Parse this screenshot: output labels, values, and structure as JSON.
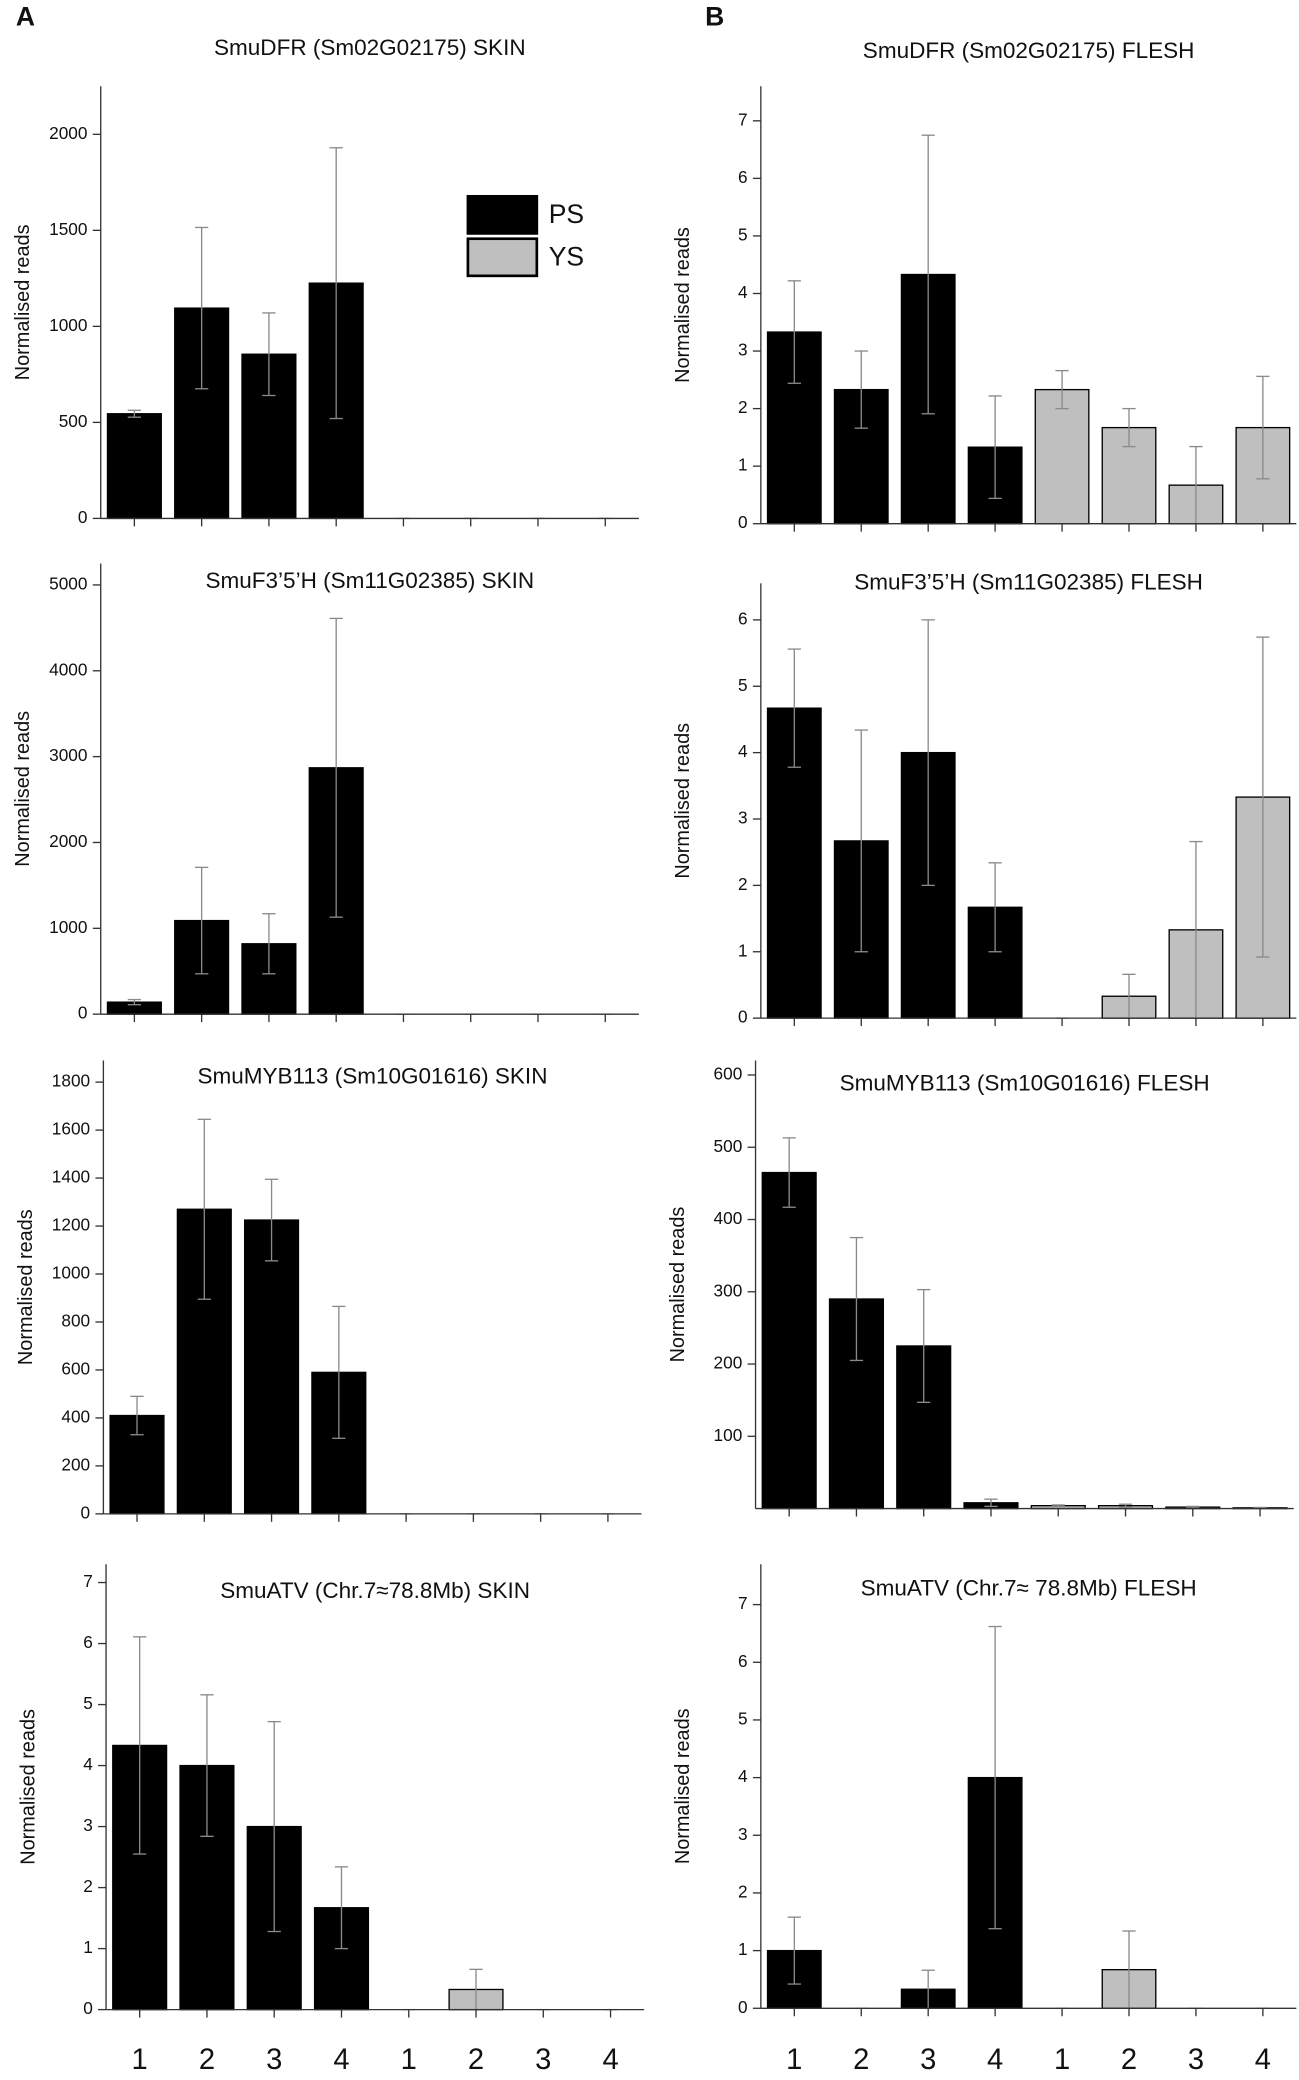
{
  "panels": [
    "A",
    "B"
  ],
  "legend": [
    {
      "name": "PS",
      "color": "#000000"
    },
    {
      "name": "YS",
      "color": "#bfbfbf"
    }
  ],
  "chart_data": [
    {
      "type": "bar",
      "title": "SmuDFR  (Sm02G02175) SKIN",
      "ylabel": "Normalised reads",
      "ylim": [
        0,
        2250
      ],
      "yticks": [
        0,
        500,
        1000,
        1500,
        2000
      ],
      "series": [
        {
          "color": "#000000",
          "values": [
            545,
            1095,
            855,
            1225,
            null,
            null,
            null,
            null
          ],
          "errors": [
            18,
            420,
            215,
            705,
            null,
            null,
            null,
            null
          ]
        },
        {
          "color": "#bfbfbf",
          "values": [
            null,
            null,
            null,
            null,
            0,
            0,
            0,
            0
          ],
          "errors": [
            null,
            null,
            null,
            null,
            0,
            0,
            0,
            0
          ]
        }
      ]
    },
    {
      "type": "bar",
      "title": "SmuDFR  (Sm02G02175) FLESH",
      "ylabel": "Normalised reads",
      "ylim": [
        0,
        7.6
      ],
      "yticks": [
        0,
        1,
        2,
        3,
        4,
        5,
        6,
        7
      ],
      "series": [
        {
          "color": "#000000",
          "values": [
            3.33,
            2.33,
            4.33,
            1.33,
            null,
            null,
            null,
            null
          ],
          "errors": [
            0.89,
            0.67,
            2.42,
            0.89,
            null,
            null,
            null,
            null
          ]
        },
        {
          "color": "#bfbfbf",
          "values": [
            null,
            null,
            null,
            null,
            2.33,
            1.67,
            0.67,
            1.67
          ],
          "errors": [
            null,
            null,
            null,
            null,
            0.33,
            0.33,
            0.67,
            0.89
          ]
        }
      ]
    },
    {
      "type": "bar",
      "title": "SmuF3’5’H  (Sm11G02385) SKIN",
      "ylabel": "Normalised reads",
      "ylim": [
        0,
        5250
      ],
      "yticks": [
        0,
        1000,
        2000,
        3000,
        4000,
        5000
      ],
      "series": [
        {
          "color": "#000000",
          "values": [
            140,
            1090,
            820,
            2870,
            null,
            null,
            null,
            null
          ],
          "errors": [
            30,
            620,
            350,
            1740,
            null,
            null,
            null,
            null
          ]
        },
        {
          "color": "#bfbfbf",
          "values": [
            null,
            null,
            null,
            null,
            0,
            0,
            0,
            0
          ],
          "errors": [
            null,
            null,
            null,
            null,
            0,
            0,
            0,
            0
          ]
        }
      ]
    },
    {
      "type": "bar",
      "title": "SmuF3’5’H  (Sm11G02385) FLESH",
      "ylabel": "Normalised reads",
      "ylim": [
        0,
        6.55
      ],
      "yticks": [
        0,
        1,
        2,
        3,
        4,
        5,
        6
      ],
      "series": [
        {
          "color": "#000000",
          "values": [
            4.67,
            2.67,
            4.0,
            1.67,
            null,
            null,
            null,
            null
          ],
          "errors": [
            0.89,
            1.67,
            2.0,
            0.67,
            null,
            null,
            null,
            null
          ]
        },
        {
          "color": "#bfbfbf",
          "values": [
            null,
            null,
            null,
            null,
            0,
            0.33,
            1.33,
            3.33
          ],
          "errors": [
            null,
            null,
            null,
            null,
            0,
            0.33,
            1.33,
            2.41
          ]
        }
      ]
    },
    {
      "type": "bar",
      "title": "SmuMYB113  (Sm10G01616) SKIN",
      "ylabel": "Normalised reads",
      "ylim": [
        0,
        1890
      ],
      "yticks": [
        0,
        200,
        400,
        600,
        800,
        1000,
        1200,
        1400,
        1600,
        1800
      ],
      "series": [
        {
          "color": "#000000",
          "values": [
            410,
            1270,
            1225,
            590,
            null,
            null,
            null,
            null
          ],
          "errors": [
            80,
            375,
            170,
            275,
            null,
            null,
            null,
            null
          ]
        },
        {
          "color": "#bfbfbf",
          "values": [
            null,
            null,
            null,
            null,
            0,
            0,
            0,
            0
          ],
          "errors": [
            null,
            null,
            null,
            null,
            0,
            0,
            0,
            0
          ]
        }
      ]
    },
    {
      "type": "bar",
      "title": "SmuMYB113  (Sm10G01616) FLESH",
      "ylabel": "Normalised reads",
      "ylim": [
        0,
        620
      ],
      "yticks": [
        100,
        200,
        300,
        400,
        500,
        600
      ],
      "series": [
        {
          "color": "#000000",
          "values": [
            465,
            290,
            225,
            8,
            null,
            null,
            null,
            null
          ],
          "errors": [
            48,
            85,
            78,
            5,
            null,
            null,
            null,
            null
          ]
        },
        {
          "color": "#bfbfbf",
          "values": [
            null,
            null,
            null,
            null,
            4,
            4,
            2,
            1
          ],
          "errors": [
            null,
            null,
            null,
            null,
            1,
            2,
            1,
            0.5
          ]
        }
      ]
    },
    {
      "type": "bar",
      "title": "SmuATV  (Chr.7≈78.8Mb) SKIN",
      "ylabel": "Normalised reads",
      "ylim": [
        0,
        7.3
      ],
      "yticks": [
        0,
        1,
        2,
        3,
        4,
        5,
        6,
        7
      ],
      "categories": [
        "1",
        "2",
        "3",
        "4",
        "1",
        "2",
        "3",
        "4"
      ],
      "series": [
        {
          "color": "#000000",
          "values": [
            4.33,
            4.0,
            3.0,
            1.67,
            null,
            null,
            null,
            null
          ],
          "errors": [
            1.78,
            1.16,
            1.72,
            0.67,
            null,
            null,
            null,
            null
          ]
        },
        {
          "color": "#bfbfbf",
          "values": [
            null,
            null,
            null,
            null,
            0,
            0.33,
            0,
            0
          ],
          "errors": [
            null,
            null,
            null,
            null,
            0,
            0.33,
            0,
            0
          ]
        }
      ]
    },
    {
      "type": "bar",
      "title": "SmuATV  (Chr.7≈ 78.8Mb) FLESH",
      "ylabel": "Normalised reads",
      "ylim": [
        0,
        7.7
      ],
      "yticks": [
        0,
        1,
        2,
        3,
        4,
        5,
        6,
        7
      ],
      "categories": [
        "1",
        "2",
        "3",
        "4",
        "1",
        "2",
        "3",
        "4"
      ],
      "series": [
        {
          "color": "#000000",
          "values": [
            1.0,
            0,
            0.33,
            4.0,
            null,
            null,
            null,
            null
          ],
          "errors": [
            0.58,
            0,
            0.33,
            2.62,
            null,
            null,
            null,
            null
          ]
        },
        {
          "color": "#bfbfbf",
          "values": [
            null,
            null,
            null,
            null,
            0,
            0.67,
            0,
            0
          ],
          "errors": [
            null,
            null,
            null,
            null,
            0,
            0.67,
            0,
            0
          ]
        }
      ]
    }
  ]
}
